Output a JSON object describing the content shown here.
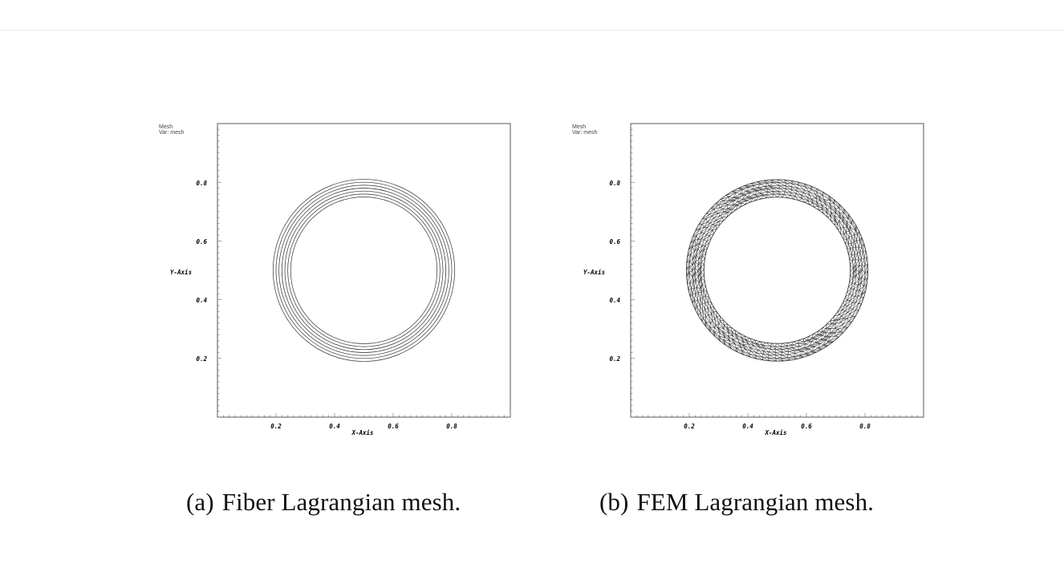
{
  "figures": [
    {
      "id": "a",
      "mesh_type": "fiber",
      "legend": [
        "Mesh",
        "Var: mesh"
      ],
      "x_axis_label": "X-Axis",
      "y_axis_label": "Y-Axis",
      "x_ticks": [
        "0.2",
        "0.4",
        "0.6",
        "0.8"
      ],
      "y_ticks": [
        "0.8",
        "0.6",
        "0.4",
        "0.2"
      ],
      "caption_tag": "(a)",
      "caption_text": "Fiber Lagrangian mesh."
    },
    {
      "id": "b",
      "mesh_type": "fem",
      "legend": [
        "Mesh",
        "Var: mesh"
      ],
      "x_axis_label": "X-Axis",
      "y_axis_label": "Y-Axis",
      "x_ticks": [
        "0.2",
        "0.4",
        "0.6",
        "0.8"
      ],
      "y_ticks": [
        "0.8",
        "0.6",
        "0.4",
        "0.2"
      ],
      "caption_tag": "(b)",
      "caption_text": "FEM Lagrangian mesh."
    }
  ],
  "colors": {
    "line": "#333333",
    "frame": "#555555",
    "caption": "#111111"
  }
}
